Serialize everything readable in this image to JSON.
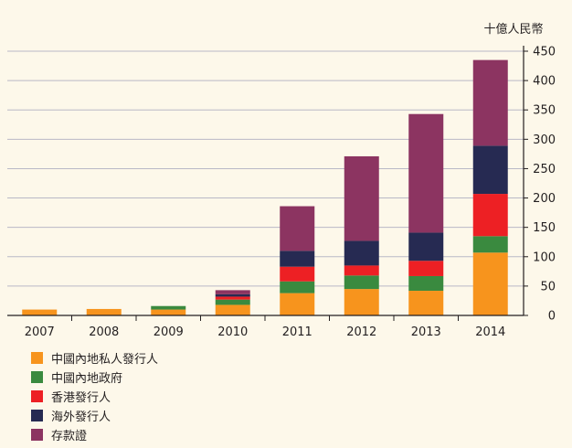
{
  "chart_data": {
    "type": "bar",
    "stacked": true,
    "title": "",
    "unit_label": "十億人民幣",
    "ylim": [
      0,
      450
    ],
    "yticks": [
      0,
      50,
      100,
      150,
      200,
      250,
      300,
      350,
      400,
      450
    ],
    "grid": true,
    "y_axis_position": "right",
    "legend_position": "bottom-left",
    "categories": [
      "2007",
      "2008",
      "2009",
      "2010",
      "2011",
      "2012",
      "2013",
      "2014"
    ],
    "series": [
      {
        "name": "中國內地私人發行人",
        "color": "#f7941d",
        "values": [
          10,
          11,
          10,
          18,
          38,
          45,
          42,
          107
        ]
      },
      {
        "name": "中國內地政府",
        "color": "#3a8a3f",
        "values": [
          0,
          0,
          6,
          9,
          20,
          23,
          25,
          28
        ]
      },
      {
        "name": "香港發行人",
        "color": "#ed2024",
        "values": [
          0,
          0,
          0,
          5,
          25,
          17,
          26,
          72
        ]
      },
      {
        "name": "海外發行人",
        "color": "#262a52",
        "values": [
          0,
          0,
          0,
          4,
          27,
          42,
          48,
          82
        ]
      },
      {
        "name": "存款證",
        "color": "#8c3461",
        "values": [
          0,
          0,
          0,
          7,
          76,
          144,
          202,
          146
        ]
      }
    ]
  }
}
